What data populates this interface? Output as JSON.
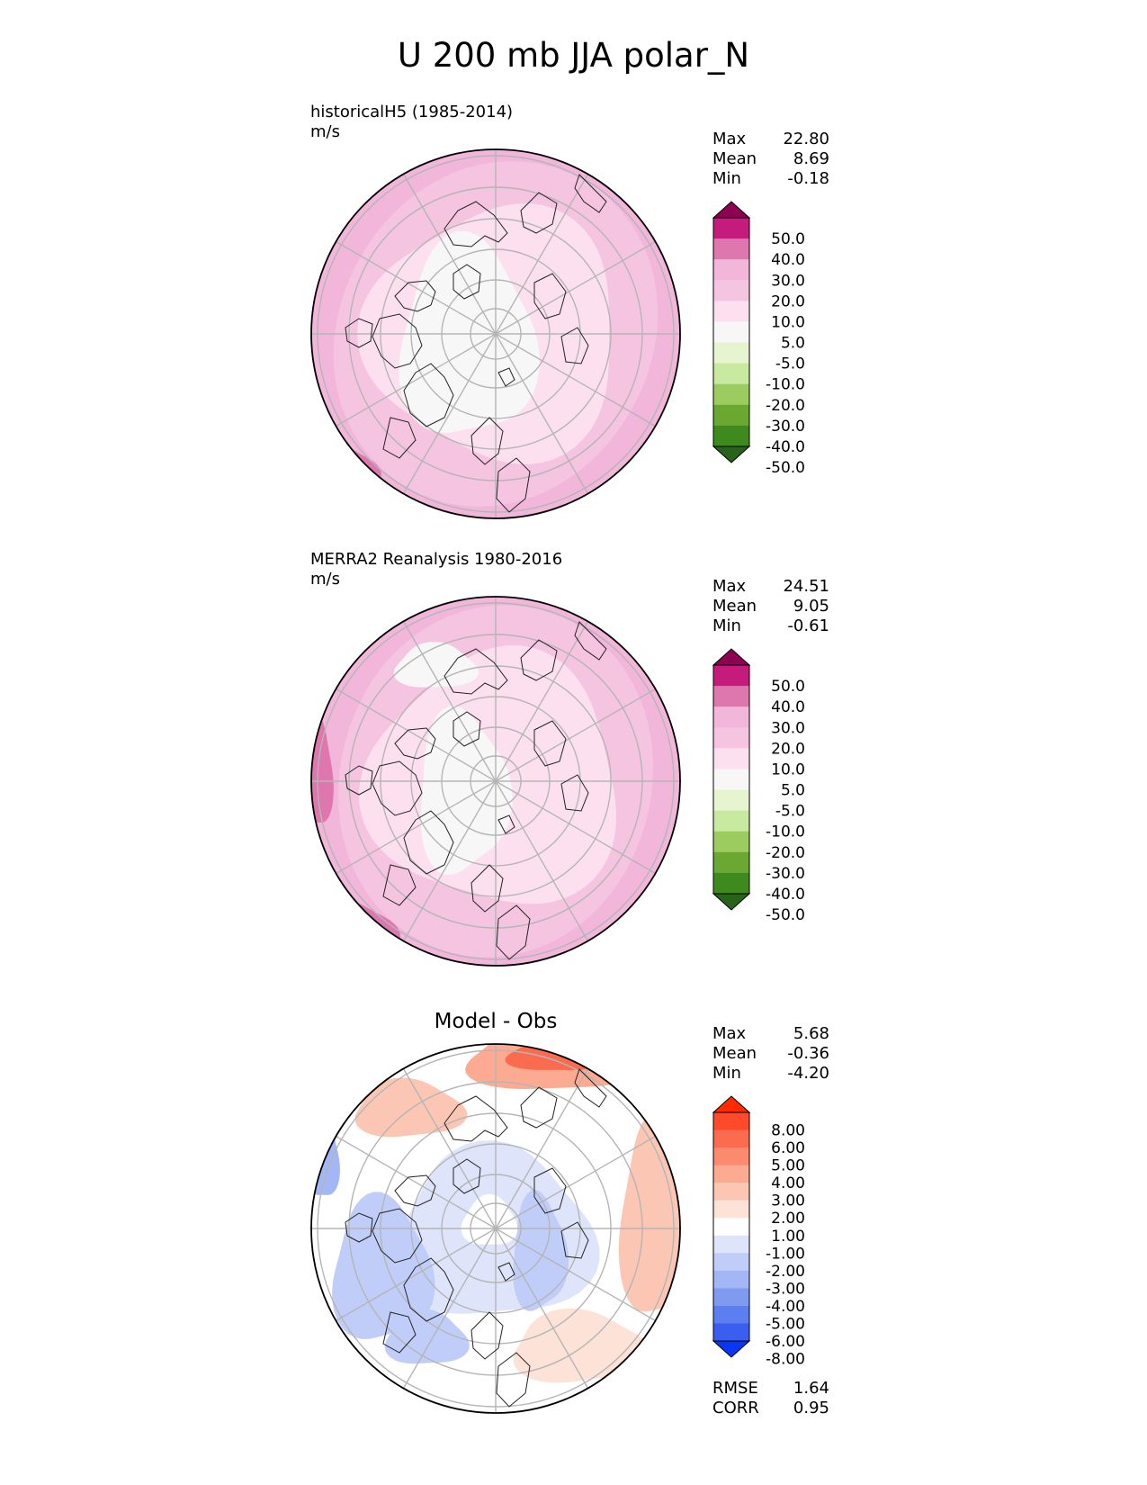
{
  "figure": {
    "title": "U 200 mb JJA polar_N"
  },
  "panels": [
    {
      "title_line1": "historicalH5 (1985-2014)",
      "title_line2": "m/s",
      "stats": [
        {
          "label": "Max",
          "value": "22.80"
        },
        {
          "label": "Mean",
          "value": "8.69"
        },
        {
          "label": "Min",
          "value": "-0.18"
        }
      ],
      "colorbar": {
        "labels": [
          "50.0",
          "40.0",
          "30.0",
          "20.0",
          "10.0",
          "5.0",
          "-5.0",
          "-10.0",
          "-20.0",
          "-30.0",
          "-40.0",
          "-50.0"
        ],
        "colors": [
          "#8e0152",
          "#c51b7d",
          "#de77ae",
          "#f1b6da",
          "#f4c4e1",
          "#fde0ef",
          "#f7f7f7",
          "#e6f5d0",
          "#c7e9a0",
          "#9ccc60",
          "#6aa832",
          "#3f8a1f",
          "#276419"
        ]
      }
    },
    {
      "title_line1": "MERRA2 Reanalysis 1980-2016",
      "title_line2": "m/s",
      "stats": [
        {
          "label": "Max",
          "value": "24.51"
        },
        {
          "label": "Mean",
          "value": "9.05"
        },
        {
          "label": "Min",
          "value": "-0.61"
        }
      ],
      "colorbar": {
        "labels": [
          "50.0",
          "40.0",
          "30.0",
          "20.0",
          "10.0",
          "5.0",
          "-5.0",
          "-10.0",
          "-20.0",
          "-30.0",
          "-40.0",
          "-50.0"
        ],
        "colors": [
          "#8e0152",
          "#c51b7d",
          "#de77ae",
          "#f1b6da",
          "#f4c4e1",
          "#fde0ef",
          "#f7f7f7",
          "#e6f5d0",
          "#c7e9a0",
          "#9ccc60",
          "#6aa832",
          "#3f8a1f",
          "#276419"
        ]
      }
    },
    {
      "center_title": "Model - Obs",
      "stats": [
        {
          "label": "Max",
          "value": "5.68"
        },
        {
          "label": "Mean",
          "value": "-0.36"
        },
        {
          "label": "Min",
          "value": "-4.20"
        }
      ],
      "colorbar": {
        "labels": [
          "8.00",
          "6.00",
          "5.00",
          "4.00",
          "3.00",
          "2.00",
          "1.00",
          "-1.00",
          "-2.00",
          "-3.00",
          "-4.00",
          "-5.00",
          "-6.00",
          "-8.00"
        ],
        "colors": [
          "#ff2a00",
          "#fc4a2a",
          "#fb6b4f",
          "#fc8a6f",
          "#fcab92",
          "#fcc6b4",
          "#fde2d8",
          "#ffffff",
          "#dee5fb",
          "#c0cdf8",
          "#a3b6f5",
          "#809af2",
          "#5d7ef0",
          "#3a5ff0",
          "#0a37f5"
        ]
      },
      "metrics": [
        {
          "label": "RMSE",
          "value": "1.64"
        },
        {
          "label": "CORR",
          "value": "0.95"
        }
      ]
    }
  ],
  "chart_data": [
    {
      "type": "heatmap",
      "projection": "north polar stereographic",
      "title": "historicalH5 (1985-2014)",
      "units": "m/s",
      "levels": [
        -50,
        -40,
        -30,
        -20,
        -10,
        -5,
        5,
        10,
        20,
        30,
        40,
        50
      ],
      "stats": {
        "max": 22.8,
        "mean": 8.69,
        "min": -0.18
      },
      "field_summary": [
        {
          "region": "north pole interior",
          "value_range": [
            -5,
            5
          ]
        },
        {
          "region": "high latitudes",
          "value_range": [
            5,
            10
          ]
        },
        {
          "region": "mid latitudes",
          "value_range": [
            10,
            20
          ]
        },
        {
          "region": "outer rim sectors",
          "value_range": [
            20,
            30
          ]
        }
      ]
    },
    {
      "type": "heatmap",
      "projection": "north polar stereographic",
      "title": "MERRA2 Reanalysis 1980-2016",
      "units": "m/s",
      "levels": [
        -50,
        -40,
        -30,
        -20,
        -10,
        -5,
        5,
        10,
        20,
        30,
        40,
        50
      ],
      "stats": {
        "max": 24.51,
        "mean": 9.05,
        "min": -0.61
      },
      "field_summary": [
        {
          "region": "north pole interior",
          "value_range": [
            -5,
            5
          ]
        },
        {
          "region": "high latitudes",
          "value_range": [
            5,
            10
          ]
        },
        {
          "region": "mid latitudes",
          "value_range": [
            10,
            20
          ]
        },
        {
          "region": "outer rim sectors",
          "value_range": [
            20,
            30
          ]
        }
      ]
    },
    {
      "type": "heatmap",
      "projection": "north polar stereographic",
      "title": "Model - Obs",
      "levels": [
        -8,
        -6,
        -5,
        -4,
        -3,
        -2,
        -1,
        1,
        2,
        3,
        4,
        5,
        6,
        8
      ],
      "stats": {
        "max": 5.68,
        "mean": -0.36,
        "min": -4.2
      },
      "metrics": {
        "rmse": 1.64,
        "corr": 0.95
      },
      "field_summary": [
        {
          "region": "high latitudes",
          "value_range": [
            -3,
            -1
          ]
        },
        {
          "region": "top / Pacific rim",
          "value_range": [
            2,
            5
          ]
        },
        {
          "region": "right rim",
          "value_range": [
            1,
            3
          ]
        },
        {
          "region": "left rim",
          "value_range": [
            -4,
            -2
          ]
        }
      ]
    }
  ]
}
